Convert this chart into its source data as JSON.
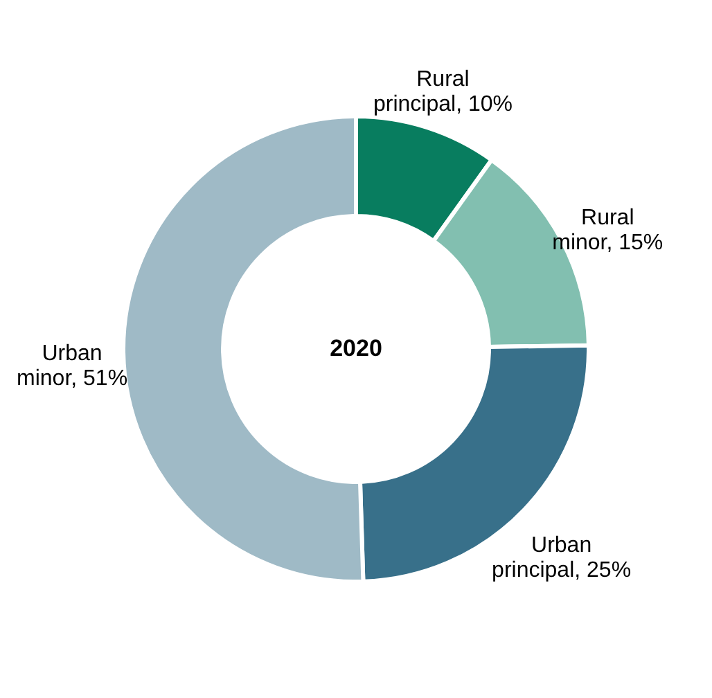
{
  "chart_data": {
    "type": "donut",
    "title": "2020",
    "categories": [
      "Rural principal",
      "Rural minor",
      "Urban principal",
      "Urban minor"
    ],
    "values": [
      10,
      15,
      25,
      51
    ],
    "value_labels": [
      "10%",
      "15%",
      "25%",
      "51%"
    ],
    "colors": [
      "#087d5f",
      "#82bfb0",
      "#38708a",
      "#9fbac6"
    ]
  }
}
